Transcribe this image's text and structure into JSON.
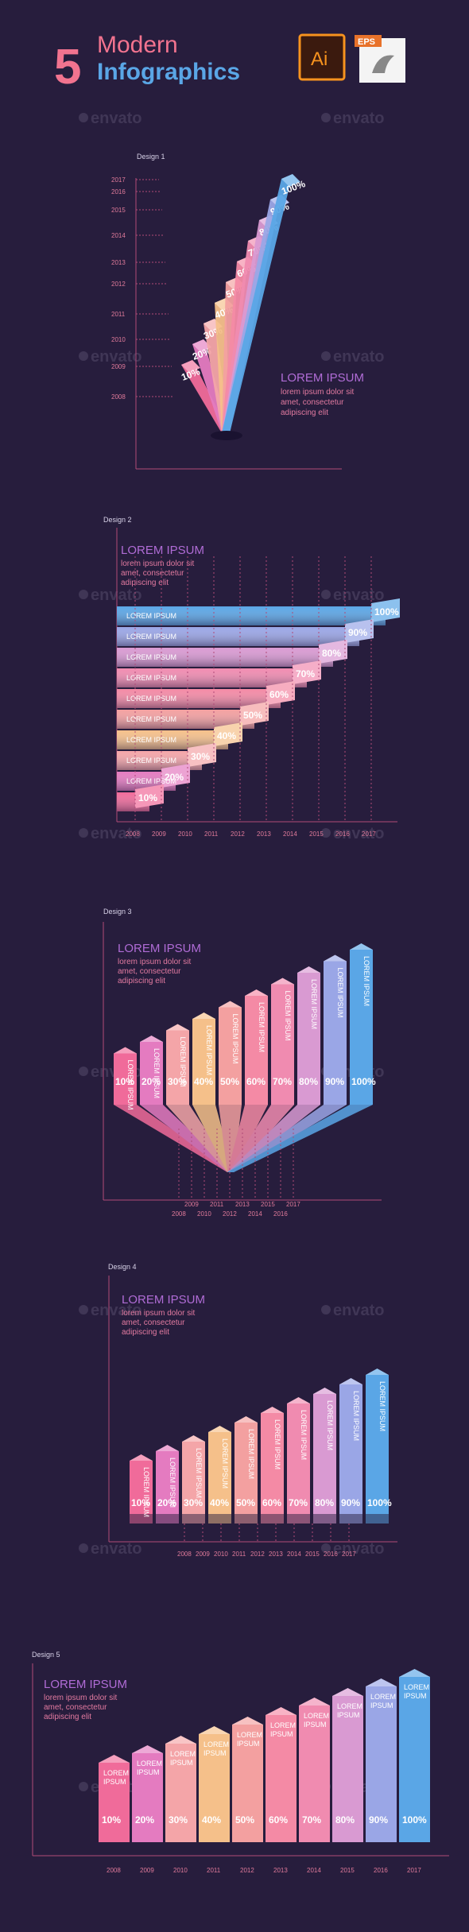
{
  "header": {
    "number": "5",
    "line1": "Modern",
    "line2": "Infographics",
    "ai_badge": "Ai",
    "eps_badge": "EPS"
  },
  "watermark": "envato",
  "colors": {
    "bg": "#271d3d",
    "pink": "#f2738f",
    "peach": "#f5b48a",
    "blue": "#5aa6e6",
    "purple": "#b06cd6"
  },
  "designs": [
    {
      "label": "Design 1",
      "callout": {
        "title": "LOREM IPSUM",
        "body": [
          "lorem ipsum dolor sit",
          "amet, consectetur",
          "adipiscing elit"
        ]
      },
      "years": [
        "2017",
        "2016",
        "2015",
        "2014",
        "2013",
        "2012",
        "2011",
        "2010",
        "2009",
        "2008"
      ],
      "percents": [
        "10%",
        "20%",
        "30%",
        "40%",
        "50%",
        "60%",
        "70%",
        "80%",
        "90%",
        "100%"
      ]
    },
    {
      "label": "Design 2",
      "callout": {
        "title": "LOREM IPSUM",
        "body": [
          "lorem ipsum dolor sit",
          "amet, consectetur",
          "adipiscing elit"
        ]
      },
      "row_labels": [
        "LOREM IPSUM",
        "LOREM IPSUM",
        "LOREM IPSUM",
        "LOREM IPSUM",
        "LOREM IPSUM",
        "LOREM IPSUM",
        "LOREM IPSUM",
        "LOREM IPSUM",
        "LOREM IPSUM"
      ],
      "years": [
        "2008",
        "2009",
        "2010",
        "2011",
        "2012",
        "2013",
        "2014",
        "2015",
        "2016",
        "2017"
      ],
      "percents": [
        "10%",
        "20%",
        "30%",
        "40%",
        "50%",
        "60%",
        "70%",
        "80%",
        "90%",
        "100%"
      ]
    },
    {
      "label": "Design 3",
      "callout": {
        "title": "LOREM IPSUM",
        "body": [
          "lorem ipsum dolor sit",
          "amet, consectetur",
          "adipiscing elit"
        ]
      },
      "bar_label": "LOREM IPSUM",
      "years": [
        "2008",
        "2009",
        "2010",
        "2011",
        "2012",
        "2013",
        "2014",
        "2015",
        "2016",
        "2017"
      ],
      "percents": [
        "10%",
        "20%",
        "30%",
        "40%",
        "50%",
        "60%",
        "70%",
        "80%",
        "90%",
        "100%"
      ]
    },
    {
      "label": "Design 4",
      "callout": {
        "title": "LOREM IPSUM",
        "body": [
          "lorem ipsum dolor sit",
          "amet, consectetur",
          "adipiscing elit"
        ]
      },
      "bar_label": "LOREM IPSUM",
      "years": [
        "2008",
        "2009",
        "2010",
        "2011",
        "2012",
        "2013",
        "2014",
        "2015",
        "2016",
        "2017"
      ],
      "percents": [
        "10%",
        "20%",
        "30%",
        "40%",
        "50%",
        "60%",
        "70%",
        "80%",
        "90%",
        "100%"
      ]
    },
    {
      "label": "Design 5",
      "callout": {
        "title": "LOREM IPSUM",
        "body": [
          "lorem ipsum dolor sit",
          "amet, consectetur",
          "adipiscing elit"
        ]
      },
      "bar_label_1": "LOREM",
      "bar_label_2": "IPSUM",
      "years": [
        "2008",
        "2009",
        "2010",
        "2011",
        "2012",
        "2013",
        "2014",
        "2015",
        "2016",
        "2017"
      ],
      "percents": [
        "10%",
        "20%",
        "30%",
        "40%",
        "50%",
        "60%",
        "70%",
        "80%",
        "90%",
        "100%"
      ]
    }
  ],
  "chart_data": [
    {
      "type": "bar",
      "categories": [
        "2008",
        "2009",
        "2010",
        "2011",
        "2012",
        "2013",
        "2014",
        "2015",
        "2016",
        "2017"
      ],
      "values": [
        10,
        20,
        30,
        40,
        50,
        60,
        70,
        80,
        90,
        100
      ]
    },
    {
      "type": "bar",
      "categories": [
        "2008",
        "2009",
        "2010",
        "2011",
        "2012",
        "2013",
        "2014",
        "2015",
        "2016",
        "2017"
      ],
      "values": [
        10,
        20,
        30,
        40,
        50,
        60,
        70,
        80,
        90,
        100
      ]
    },
    {
      "type": "bar",
      "categories": [
        "2008",
        "2009",
        "2010",
        "2011",
        "2012",
        "2013",
        "2014",
        "2015",
        "2016",
        "2017"
      ],
      "values": [
        10,
        20,
        30,
        40,
        50,
        60,
        70,
        80,
        90,
        100
      ]
    },
    {
      "type": "bar",
      "categories": [
        "2008",
        "2009",
        "2010",
        "2011",
        "2012",
        "2013",
        "2014",
        "2015",
        "2016",
        "2017"
      ],
      "values": [
        10,
        20,
        30,
        40,
        50,
        60,
        70,
        80,
        90,
        100
      ]
    },
    {
      "type": "bar",
      "categories": [
        "2008",
        "2009",
        "2010",
        "2011",
        "2012",
        "2013",
        "2014",
        "2015",
        "2016",
        "2017"
      ],
      "values": [
        10,
        20,
        30,
        40,
        50,
        60,
        70,
        80,
        90,
        100
      ]
    }
  ]
}
